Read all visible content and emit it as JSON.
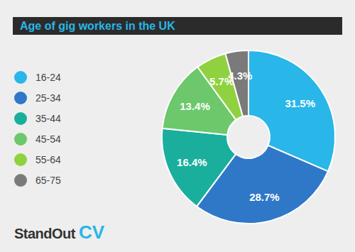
{
  "chart_data": {
    "type": "pie",
    "title": "Age of gig workers in the UK",
    "categories": [
      "16-24",
      "25-34",
      "35-44",
      "45-54",
      "55-64",
      "65-75"
    ],
    "values": [
      31.5,
      28.7,
      16.4,
      13.4,
      5.7,
      4.3
    ],
    "value_labels": [
      "31.5%",
      "28.7%",
      "16.4%",
      "13.4%",
      "5.7%",
      "4.3%"
    ],
    "colors": [
      "#29b6e8",
      "#2f78c8",
      "#1aaf9c",
      "#6cc86a",
      "#8fd13f",
      "#7a7a7a"
    ],
    "data_labels": true,
    "legend": "left",
    "annotations": [
      "StandOut",
      "CV"
    ]
  }
}
